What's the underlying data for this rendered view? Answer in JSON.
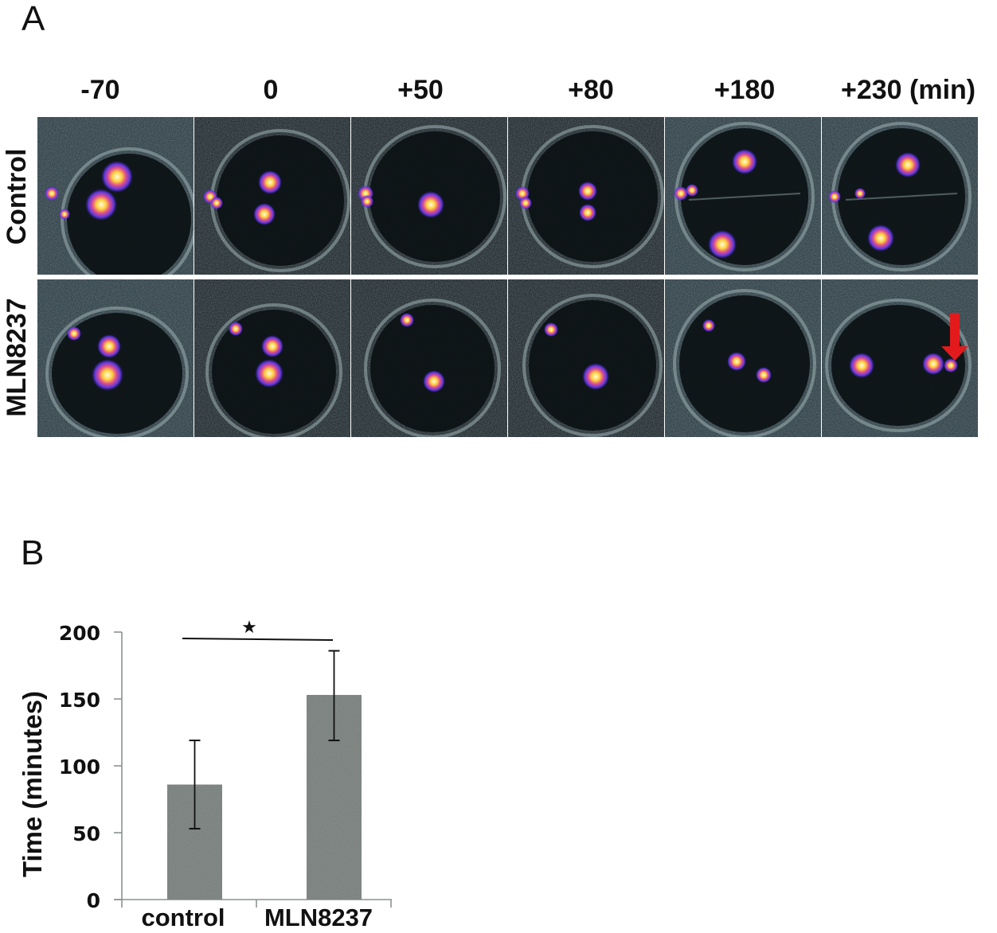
{
  "figure": {
    "panel_a": {
      "letter": "A",
      "time_labels": [
        "-70",
        "0",
        "+50",
        "+80",
        "+180",
        "+230 (min)"
      ],
      "row_labels": [
        "Control",
        "MLN8237"
      ],
      "annotation": {
        "type": "arrow",
        "color": "#e31a1c",
        "location": "MLN8237 row, +230 (min) panel",
        "pointing": "down"
      }
    },
    "panel_b": {
      "letter": "B"
    }
  },
  "chart_data": {
    "type": "bar",
    "title": "",
    "xlabel": "",
    "ylabel": "Time (minutes)",
    "categories": [
      "control",
      "MLN8237"
    ],
    "values": [
      86,
      153
    ],
    "error_bars": [
      {
        "low": 53,
        "high": 119
      },
      {
        "low": 119,
        "high": 186
      }
    ],
    "ylim": [
      0,
      200
    ],
    "yticks": [
      0,
      50,
      100,
      150,
      200
    ],
    "grid": false,
    "legend": null,
    "bar_color": "#6f7773",
    "annotations": [
      {
        "type": "significance",
        "symbol": "★",
        "between": [
          "control",
          "MLN8237"
        ]
      }
    ]
  }
}
